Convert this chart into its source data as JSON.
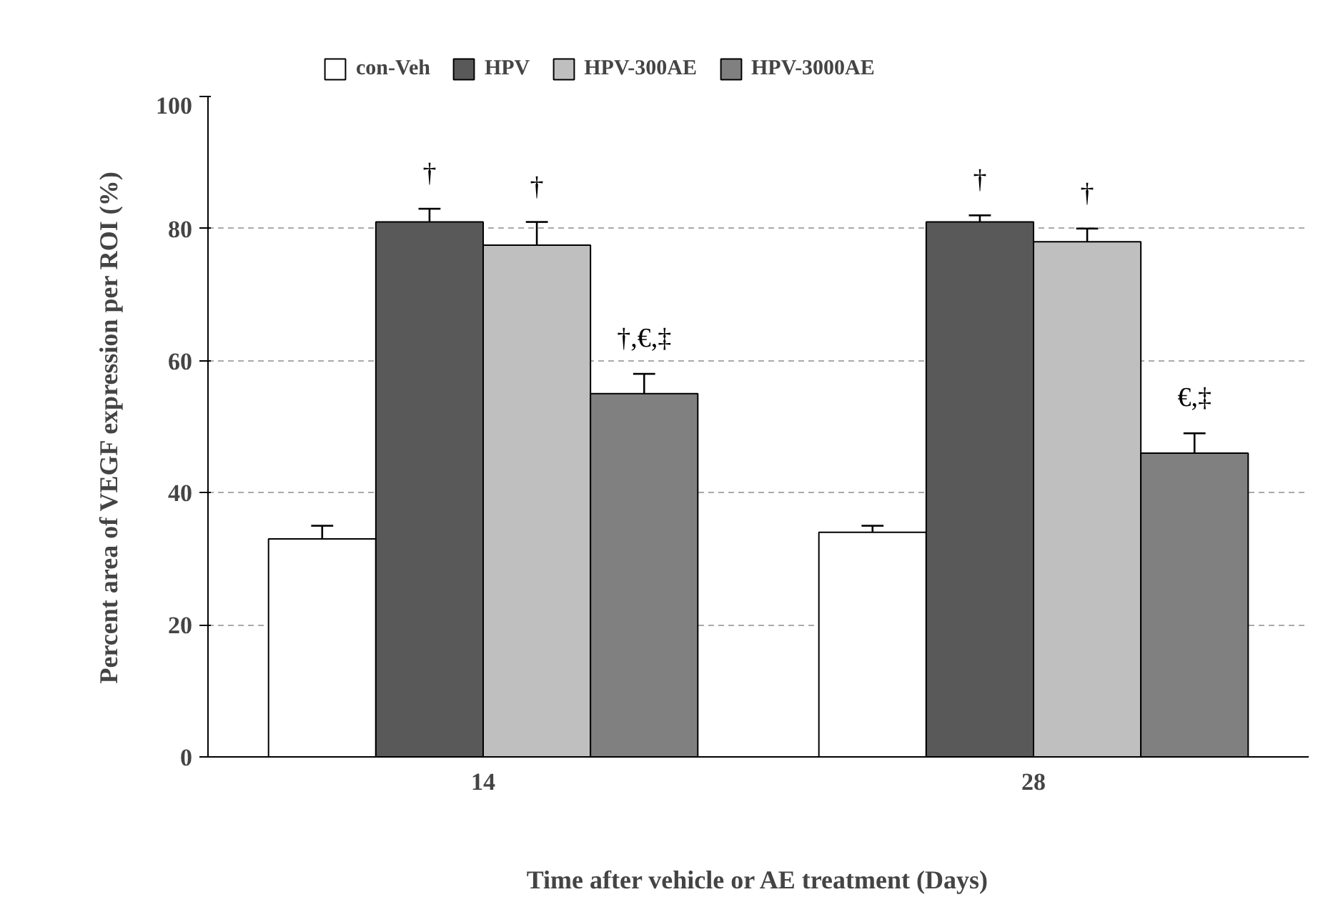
{
  "chart_data": {
    "type": "bar",
    "xlabel": "Time after vehicle or AE treatment (Days)",
    "ylabel": "Percent area of VEGF expression per ROI (%)",
    "categories": [
      "14",
      "28"
    ],
    "series": [
      {
        "name": "con-Veh",
        "color": "#ffffff",
        "values": [
          33,
          34
        ],
        "errors": [
          [
            33,
            35
          ],
          [
            34,
            35
          ]
        ]
      },
      {
        "name": "HPV",
        "color": "#595959",
        "values": [
          81,
          81
        ],
        "errors": [
          [
            81,
            83
          ],
          [
            81,
            82
          ]
        ],
        "value_labels": [
          "†",
          "†"
        ]
      },
      {
        "name": "HPV-300AE",
        "color": "#bfbfbf",
        "values": [
          77.5,
          78
        ],
        "errors": [
          [
            77.5,
            81
          ],
          [
            78,
            80
          ]
        ],
        "value_labels": [
          "†",
          "†"
        ]
      },
      {
        "name": "HPV-3000AE",
        "color": "#808080",
        "values": [
          55,
          46
        ],
        "errors": [
          [
            55,
            58
          ],
          [
            46,
            49
          ]
        ],
        "value_labels": [
          "†,€,‡",
          "€,‡"
        ]
      }
    ],
    "ylim": [
      0,
      100
    ],
    "yticks": [
      0,
      20,
      40,
      60,
      80,
      100
    ],
    "grid": "y",
    "legend": "top"
  }
}
